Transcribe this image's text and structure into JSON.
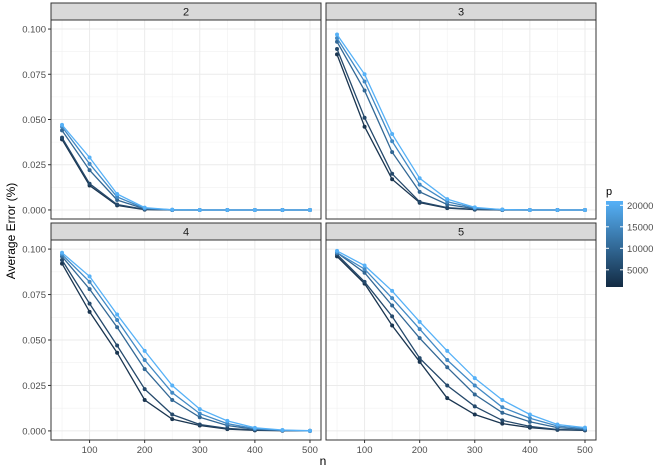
{
  "chart_data": {
    "type": "line",
    "xlabel": "n",
    "ylabel": "Average Error (%)",
    "x": [
      50,
      100,
      150,
      200,
      250,
      300,
      350,
      400,
      450,
      500
    ],
    "x_ticks": [
      "100",
      "200",
      "300",
      "400",
      "500"
    ],
    "y_ticks": [
      "0.000",
      "0.025",
      "0.050",
      "0.075",
      "0.100"
    ],
    "xlim": [
      30,
      520
    ],
    "ylim": [
      -0.005,
      0.105
    ],
    "grid": true,
    "legend": {
      "title": "p",
      "placement": "right",
      "labels": [
        "20000",
        "15000",
        "10000",
        "5000"
      ],
      "low_color": "#132B43",
      "high_color": "#56B1F7"
    },
    "panels": [
      {
        "strip": "2",
        "series": [
          {
            "values": [
              0.039,
              0.0135,
              0.0025,
              0.0002,
              0,
              0,
              0,
              0,
              0,
              0
            ]
          },
          {
            "values": [
              0.04,
              0.0145,
              0.003,
              0.0003,
              0,
              0,
              0,
              0,
              0,
              0
            ]
          },
          {
            "values": [
              0.044,
              0.022,
              0.0055,
              0.0006,
              0,
              0,
              0,
              0,
              0,
              0
            ]
          },
          {
            "values": [
              0.046,
              0.0255,
              0.0072,
              0.0009,
              0.0001,
              0,
              0,
              0,
              0,
              0
            ]
          },
          {
            "values": [
              0.047,
              0.029,
              0.0088,
              0.0013,
              0.0001,
              0,
              0,
              0,
              0,
              0
            ]
          }
        ]
      },
      {
        "strip": "3",
        "series": [
          {
            "values": [
              0.086,
              0.046,
              0.017,
              0.004,
              0.001,
              0.0002,
              0,
              0,
              0,
              0
            ]
          },
          {
            "values": [
              0.089,
              0.051,
              0.02,
              0.0045,
              0.0013,
              0.0003,
              0,
              0,
              0,
              0
            ]
          },
          {
            "values": [
              0.093,
              0.066,
              0.032,
              0.01,
              0.003,
              0.0007,
              0.0001,
              0,
              0,
              0
            ]
          },
          {
            "values": [
              0.095,
              0.071,
              0.038,
              0.014,
              0.0045,
              0.0011,
              0.0002,
              0,
              0,
              0
            ]
          },
          {
            "values": [
              0.097,
              0.075,
              0.042,
              0.0175,
              0.006,
              0.0014,
              0.0002,
              0,
              0,
              0
            ]
          }
        ]
      },
      {
        "strip": "4",
        "series": [
          {
            "values": [
              0.092,
              0.0655,
              0.043,
              0.017,
              0.0065,
              0.003,
              0.001,
              0.0003,
              0.0001,
              0
            ]
          },
          {
            "values": [
              0.094,
              0.07,
              0.047,
              0.023,
              0.009,
              0.0035,
              0.0014,
              0.0005,
              0.0002,
              0
            ]
          },
          {
            "values": [
              0.096,
              0.078,
              0.057,
              0.034,
              0.017,
              0.0075,
              0.003,
              0.0009,
              0.0002,
              0
            ]
          },
          {
            "values": [
              0.097,
              0.082,
              0.061,
              0.039,
              0.021,
              0.0095,
              0.004,
              0.0012,
              0.0003,
              0
            ]
          },
          {
            "values": [
              0.098,
              0.085,
              0.064,
              0.044,
              0.025,
              0.012,
              0.0055,
              0.0017,
              0.0005,
              0.0001
            ]
          }
        ]
      },
      {
        "strip": "5",
        "series": [
          {
            "values": [
              0.096,
              0.081,
              0.058,
              0.038,
              0.018,
              0.009,
              0.004,
              0.0018,
              0.0006,
              0.0003
            ]
          },
          {
            "values": [
              0.097,
              0.082,
              0.063,
              0.04,
              0.025,
              0.0135,
              0.0058,
              0.0025,
              0.0008,
              0.0004
            ]
          },
          {
            "values": [
              0.098,
              0.087,
              0.069,
              0.051,
              0.035,
              0.02,
              0.01,
              0.005,
              0.0018,
              0.0008
            ]
          },
          {
            "values": [
              0.098,
              0.089,
              0.073,
              0.056,
              0.039,
              0.025,
              0.013,
              0.007,
              0.0027,
              0.0012
            ]
          },
          {
            "values": [
              0.099,
              0.091,
              0.077,
              0.06,
              0.044,
              0.029,
              0.017,
              0.009,
              0.0035,
              0.0018
            ]
          }
        ]
      }
    ],
    "series_colors": [
      "#1a3550",
      "#25496b",
      "#336895",
      "#4289c4",
      "#56B1F7"
    ]
  }
}
